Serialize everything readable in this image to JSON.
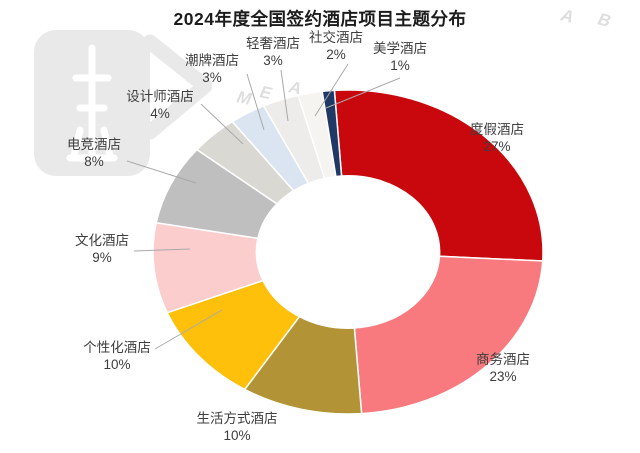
{
  "chart_data": {
    "type": "pie",
    "subtype": "donut",
    "title": "2024年度全国签约酒店项目主题分布",
    "unit": "%",
    "direction": "clockwise",
    "start_angle_deg": -4,
    "inner_radius_ratio": 0.47,
    "legend": "none",
    "labels_format": "category name above percent value, leader lines to small slices",
    "slices": [
      {
        "label": "度假酒店",
        "value": 27,
        "color": "#C9080D"
      },
      {
        "label": "商务酒店",
        "value": 23,
        "color": "#F8797E"
      },
      {
        "label": "生活方式酒店",
        "value": 10,
        "color": "#B29335"
      },
      {
        "label": "个性化酒店",
        "value": 10,
        "color": "#FEC00A"
      },
      {
        "label": "文化酒店",
        "value": 9,
        "color": "#FBCDCD"
      },
      {
        "label": "电竞酒店",
        "value": 8,
        "color": "#C0BFBF"
      },
      {
        "label": "设计师酒店",
        "value": 4,
        "color": "#DAD8D3"
      },
      {
        "label": "潮牌酒店",
        "value": 3,
        "color": "#DBE5F2"
      },
      {
        "label": "轻奢酒店",
        "value": 3,
        "color": "#EDECEA"
      },
      {
        "label": "社交酒店",
        "value": 2,
        "color": "#F5F4F1"
      },
      {
        "label": "美学酒店",
        "value": 1,
        "color": "#1F3864"
      }
    ]
  },
  "watermark": {
    "logo": "meadin-tower-logo",
    "mid_letters": [
      "M",
      "E",
      "A"
    ],
    "corner_letters": [
      "A",
      "B"
    ],
    "color": "#e9e9e9"
  }
}
